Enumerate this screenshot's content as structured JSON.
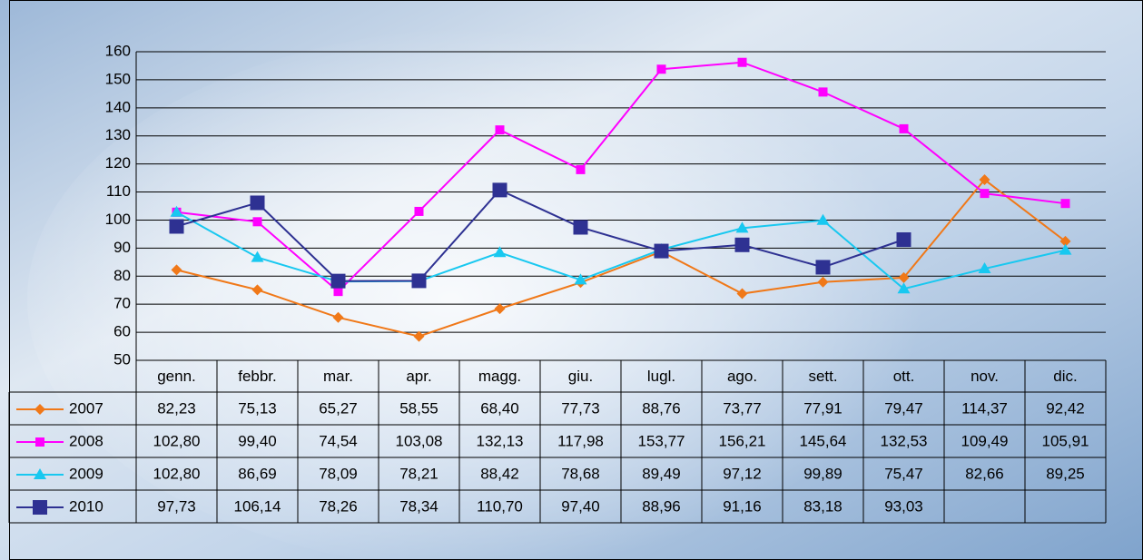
{
  "chart_data": {
    "type": "line",
    "categories": [
      "genn.",
      "febbr.",
      "mar.",
      "apr.",
      "magg.",
      "giu.",
      "lugl.",
      "ago.",
      "sett.",
      "ott.",
      "nov.",
      "dic."
    ],
    "series": [
      {
        "name": "2007",
        "color": "#f07818",
        "marker": "diamond",
        "values": [
          82.23,
          75.13,
          65.27,
          58.55,
          68.4,
          77.73,
          88.76,
          73.77,
          77.91,
          79.47,
          114.37,
          92.42
        ],
        "value_labels": [
          "82,23",
          "75,13",
          "65,27",
          "58,55",
          "68,40",
          "77,73",
          "88,76",
          "73,77",
          "77,91",
          "79,47",
          "114,37",
          "92,42"
        ]
      },
      {
        "name": "2008",
        "color": "#ff00ff",
        "marker": "square-small",
        "values": [
          102.8,
          99.4,
          74.54,
          103.08,
          132.13,
          117.98,
          153.77,
          156.21,
          145.64,
          132.53,
          109.49,
          105.91
        ],
        "value_labels": [
          "102,80",
          "99,40",
          "74,54",
          "103,08",
          "132,13",
          "117,98",
          "153,77",
          "156,21",
          "145,64",
          "132,53",
          "109,49",
          "105,91"
        ]
      },
      {
        "name": "2009",
        "color": "#18c8f0",
        "marker": "triangle",
        "values": [
          102.8,
          86.69,
          78.09,
          78.21,
          88.42,
          78.68,
          89.49,
          97.12,
          99.89,
          75.47,
          82.66,
          89.25
        ],
        "value_labels": [
          "102,80",
          "86,69",
          "78,09",
          "78,21",
          "88,42",
          "78,68",
          "89,49",
          "97,12",
          "99,89",
          "75,47",
          "82,66",
          "89,25"
        ]
      },
      {
        "name": "2010",
        "color": "#2e3192",
        "marker": "square",
        "values": [
          97.73,
          106.14,
          78.26,
          78.34,
          110.7,
          97.4,
          88.96,
          91.16,
          83.18,
          93.03,
          null,
          null
        ],
        "value_labels": [
          "97,73",
          "106,14",
          "78,26",
          "78,34",
          "110,70",
          "97,40",
          "88,96",
          "91,16",
          "83,18",
          "93,03",
          null,
          null
        ]
      }
    ],
    "ylim": [
      50,
      160
    ],
    "yticks": [
      50,
      60,
      70,
      80,
      90,
      100,
      110,
      120,
      130,
      140,
      150,
      160
    ],
    "grid": true
  }
}
